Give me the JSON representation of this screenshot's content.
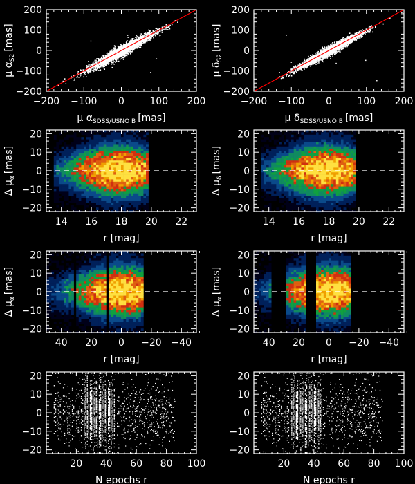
{
  "colors": {
    "background": "#000000",
    "axes": "#ffffff",
    "fit_line": "#ff0000",
    "points": "#ffffff",
    "heat_scale": [
      "#000018",
      "#00205a",
      "#0a4a8a",
      "#108a60",
      "#10a040",
      "#d03010",
      "#e06010",
      "#f0a000",
      "#ffe040"
    ]
  },
  "chart_data": [
    {
      "id": "ra-comparison",
      "type": "scatter",
      "xlim": [
        -200,
        200
      ],
      "ylim": [
        -200,
        200
      ],
      "xticks": [
        -200,
        -100,
        0,
        100,
        200
      ],
      "yticks": [
        -200,
        -100,
        0,
        100,
        200
      ],
      "xlabel": {
        "main": "μ α",
        "sub": "SDSS/USNO B",
        "unit": "[mas]"
      },
      "ylabel": {
        "main": "μ α",
        "sub": "S2",
        "unit": "[mas]"
      },
      "fit_line": {
        "slope": 1,
        "intercept": 0
      },
      "spread": 15
    },
    {
      "id": "dec-comparison",
      "type": "scatter",
      "xlim": [
        -200,
        200
      ],
      "ylim": [
        -200,
        200
      ],
      "xticks": [
        -200,
        -100,
        0,
        100,
        200
      ],
      "yticks": [
        -200,
        -100,
        0,
        100,
        200
      ],
      "xlabel": {
        "main": "μ δ",
        "sub": "SDSS/USNO B",
        "unit": "[mas]"
      },
      "ylabel": {
        "main": "μ δ",
        "sub": "S2",
        "unit": "[mas]"
      },
      "fit_line": {
        "slope": 1,
        "intercept": 0
      },
      "spread": 12
    },
    {
      "id": "ra-residual-vs-mag",
      "type": "heatmap",
      "xlim": [
        13,
        23
      ],
      "ylim": [
        -22,
        22
      ],
      "xticks": [
        14,
        16,
        18,
        20,
        22
      ],
      "yticks": [
        -20,
        -10,
        0,
        10,
        20
      ],
      "xlabel": {
        "main": "r [mag]",
        "sub": "",
        "unit": ""
      },
      "ylabel": {
        "main": "Δ μ",
        "sub": "α",
        "unit": "[mas]"
      },
      "zero_line": 0,
      "bands": [
        [
          13.5,
          19.8
        ]
      ],
      "peak_x": 17.8
    },
    {
      "id": "dec-residual-vs-mag",
      "type": "heatmap",
      "xlim": [
        13,
        23
      ],
      "ylim": [
        -22,
        22
      ],
      "xticks": [
        14,
        16,
        18,
        20,
        22
      ],
      "yticks": [
        -20,
        -10,
        0,
        10,
        20
      ],
      "xlabel": {
        "main": "r [mag]",
        "sub": "",
        "unit": ""
      },
      "ylabel": {
        "main": "Δ μ",
        "sub": "δ",
        "unit": "[mas]"
      },
      "zero_line": 0,
      "bands": [
        [
          13.5,
          19.8
        ]
      ],
      "peak_x": 17.8
    },
    {
      "id": "ra-residual-vs-r",
      "type": "heatmap",
      "xlim": [
        50,
        -50
      ],
      "ylim": [
        -22,
        22
      ],
      "xticks": [
        40,
        20,
        0,
        -20,
        -40
      ],
      "yticks": [
        -20,
        -10,
        0,
        10,
        20
      ],
      "xlabel": {
        "main": "r [mag]",
        "sub": "",
        "unit": ""
      },
      "ylabel": {
        "main": "Δ μ",
        "sub": "α",
        "unit": "[mas]"
      },
      "zero_line": 0,
      "bands": [
        [
          32,
          50
        ],
        [
          11,
          30
        ],
        [
          -15,
          8
        ]
      ],
      "peak_x": 0
    },
    {
      "id": "dec-residual-vs-r",
      "type": "heatmap",
      "xlim": [
        50,
        -50
      ],
      "ylim": [
        -22,
        22
      ],
      "xticks": [
        40,
        20,
        0,
        -20,
        -40
      ],
      "yticks": [
        -20,
        -10,
        0,
        10,
        20
      ],
      "xlabel": {
        "main": "r [mag]",
        "sub": "",
        "unit": ""
      },
      "ylabel": {
        "main": "Δ μ",
        "sub": "α",
        "unit": "[mas]"
      },
      "zero_line": 0,
      "bands": [
        [
          38,
          50
        ],
        [
          15,
          29
        ],
        [
          -15,
          8
        ]
      ],
      "peak_x": 0
    },
    {
      "id": "ra-residual-vs-epochs",
      "type": "scatter",
      "xlim": [
        0,
        100
      ],
      "ylim": [
        -22,
        22
      ],
      "xticks": [
        20,
        40,
        60,
        80,
        100
      ],
      "yticks": [
        -20,
        -10,
        0,
        10,
        20
      ],
      "xlabel": {
        "main": "N epochs r",
        "sub": "",
        "unit": ""
      },
      "ylabel": {
        "main": "",
        "sub": "",
        "unit": ""
      },
      "dense_range": [
        25,
        45
      ],
      "sparse_range": [
        5,
        85
      ]
    },
    {
      "id": "dec-residual-vs-epochs",
      "type": "scatter",
      "xlim": [
        0,
        100
      ],
      "ylim": [
        -22,
        22
      ],
      "xticks": [
        20,
        40,
        60,
        80,
        100
      ],
      "yticks": [
        -20,
        -10,
        0,
        10,
        20
      ],
      "xlabel": {
        "main": "N epochs r",
        "sub": "",
        "unit": ""
      },
      "ylabel": {
        "main": "",
        "sub": "",
        "unit": ""
      },
      "dense_range": [
        25,
        45
      ],
      "sparse_range": [
        5,
        85
      ]
    }
  ]
}
